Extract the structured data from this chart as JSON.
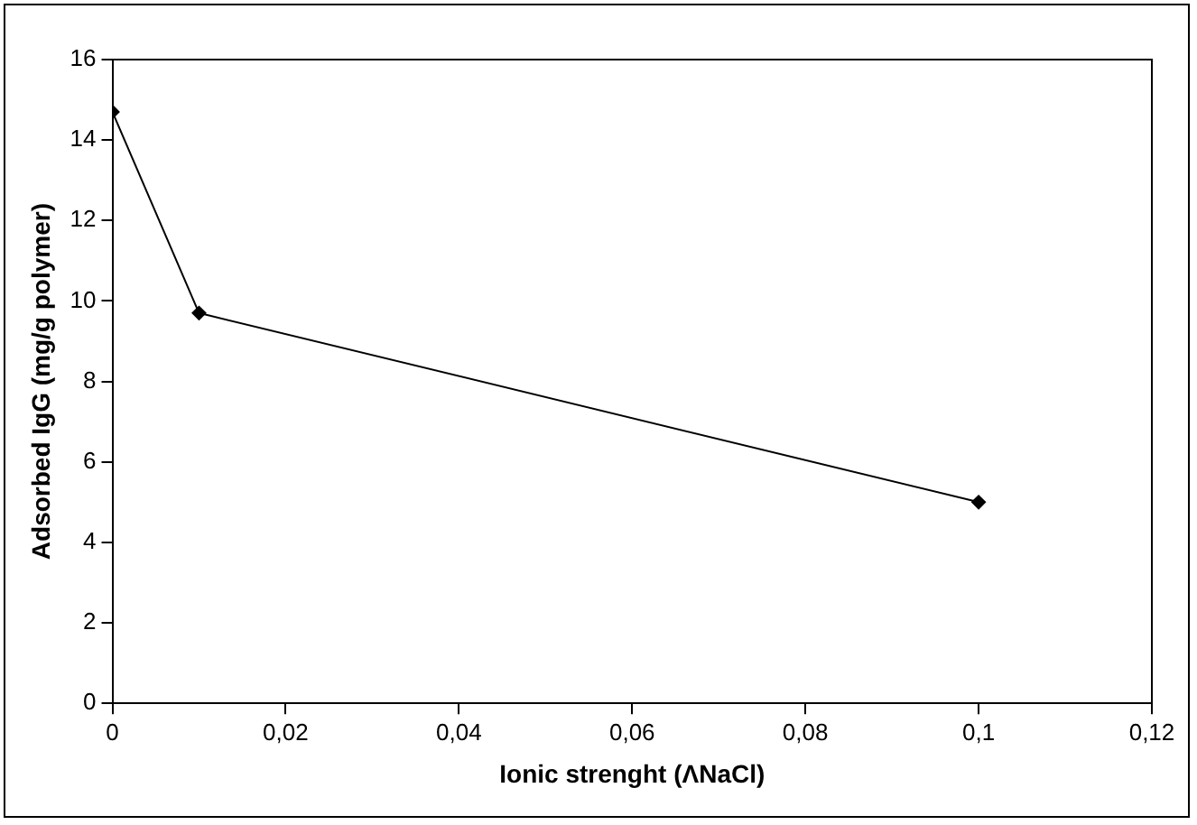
{
  "chart_data": {
    "type": "line",
    "xlabel": "Ionic strenght (ΛNaCl)",
    "ylabel": "Adsorbed IgG (mg/g polymer)",
    "x": [
      0,
      0.01,
      0.1
    ],
    "series": [
      {
        "color": "#000000",
        "values": [
          14.7,
          9.7,
          5.0
        ]
      }
    ],
    "xlim": [
      0,
      0.12
    ],
    "xticks": [
      {
        "value": 0,
        "label": "0"
      },
      {
        "value": 0.02,
        "label": "0,02"
      },
      {
        "value": 0.04,
        "label": "0,04"
      },
      {
        "value": 0.06,
        "label": "0,06"
      },
      {
        "value": 0.08,
        "label": "0,08"
      },
      {
        "value": 0.1,
        "label": "0,1"
      },
      {
        "value": 0.12,
        "label": "0,12"
      }
    ],
    "ylim": [
      0,
      16
    ],
    "yticks": [
      0,
      2,
      4,
      6,
      8,
      10,
      12,
      14,
      16
    ],
    "grid": false,
    "legend": false,
    "marker": "diamond",
    "line_style": "solid"
  }
}
